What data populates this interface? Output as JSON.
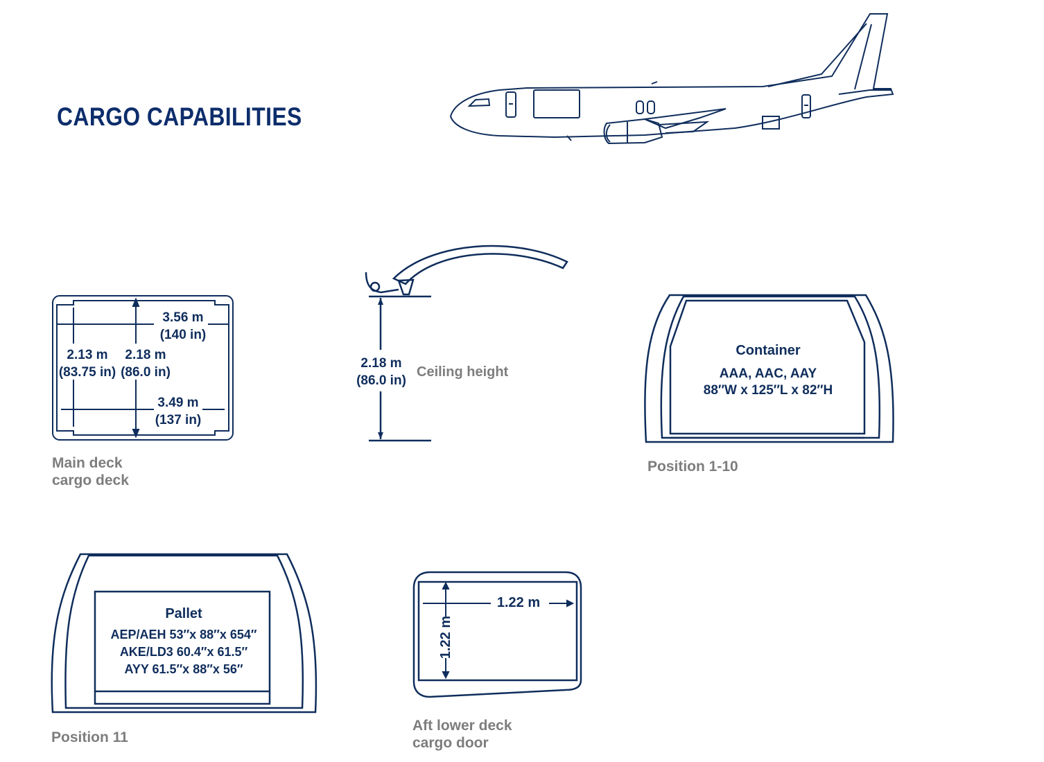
{
  "title": "CARGO CAPABILITIES",
  "colors": {
    "navy": "#0f2d5c",
    "title": "#0d2d6b",
    "caption": "#7d7d7d"
  },
  "main_deck": {
    "width_top": "3.56 m",
    "width_top_in": "(140 in)",
    "height_side": "2.13 m",
    "height_side_in": "(83.75 in)",
    "height_center": "2.18 m",
    "height_center_in": "(86.0 in)",
    "width_bottom": "3.49 m",
    "width_bottom_in": "(137 in)",
    "caption_line1": "Main deck",
    "caption_line2": "cargo deck"
  },
  "ceiling": {
    "value": "2.18 m",
    "value_in": "(86.0 in)",
    "caption": "Ceiling height"
  },
  "position_1_10": {
    "heading": "Container",
    "types": "AAA, AAC, AAY",
    "dims": "88′′W x 125′′L x 82′′H",
    "caption": "Position 1-10"
  },
  "position_11": {
    "heading": "Pallet",
    "line1": "AEP/AEH 53′′x 88′′x 654′′",
    "line2": "AKE/LD3 60.4′′x 61.5′′",
    "line3": "AYY 61.5′′x 88′′x 56′′",
    "caption": "Position 11"
  },
  "aft_door": {
    "width": "1.22 m",
    "height": "1.22 m",
    "caption_line1": "Aft lower deck",
    "caption_line2": "cargo door"
  }
}
